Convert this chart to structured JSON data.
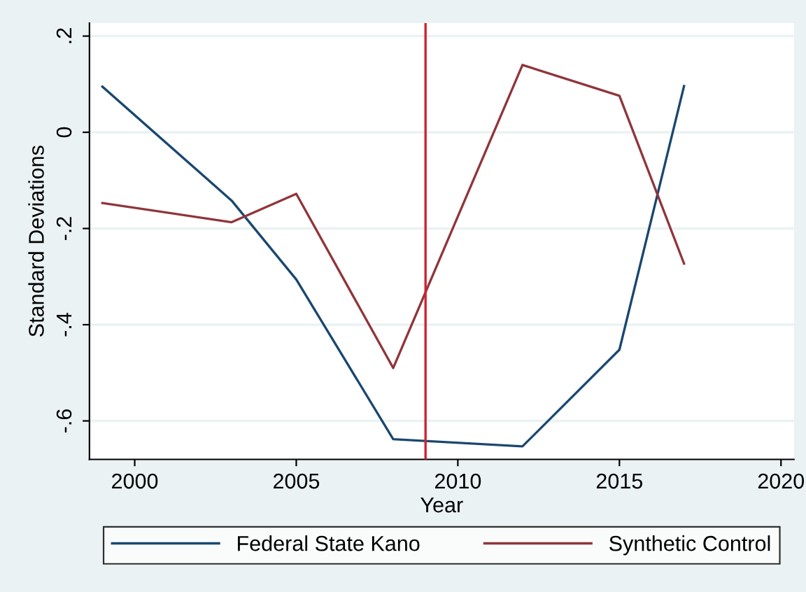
{
  "chart_data": {
    "type": "line",
    "xlabel": "Year",
    "ylabel": "Standard Deviations",
    "x": [
      1999,
      2003,
      2005,
      2008,
      2012,
      2015,
      2017
    ],
    "series": [
      {
        "name": "Federal State Kano",
        "color": "#1a476f",
        "values": [
          0.095,
          -0.142,
          -0.306,
          -0.638,
          -0.653,
          -0.452,
          0.096
        ]
      },
      {
        "name": "Synthetic Control",
        "color": "#90353b",
        "values": [
          -0.147,
          -0.187,
          -0.128,
          -0.49,
          0.14,
          0.076,
          -0.273
        ]
      }
    ],
    "xlim": [
      1998.6,
      2020.4
    ],
    "ylim": [
      -0.68,
      0.227
    ],
    "xticks": [
      2000,
      2005,
      2010,
      2015,
      2020
    ],
    "yticks": [
      {
        "value": 0.2,
        "label": ".2"
      },
      0,
      {
        "value": -0.2,
        "label": "-.2"
      },
      {
        "value": -0.4,
        "label": "-.4"
      },
      {
        "value": -0.6,
        "label": "-.6"
      }
    ],
    "ref_lines": [
      {
        "axis": "x",
        "value": 2009,
        "color": "#d1212f"
      }
    ],
    "grid": "y",
    "legend": "bottom",
    "marker": "none",
    "line_style": "solid"
  }
}
